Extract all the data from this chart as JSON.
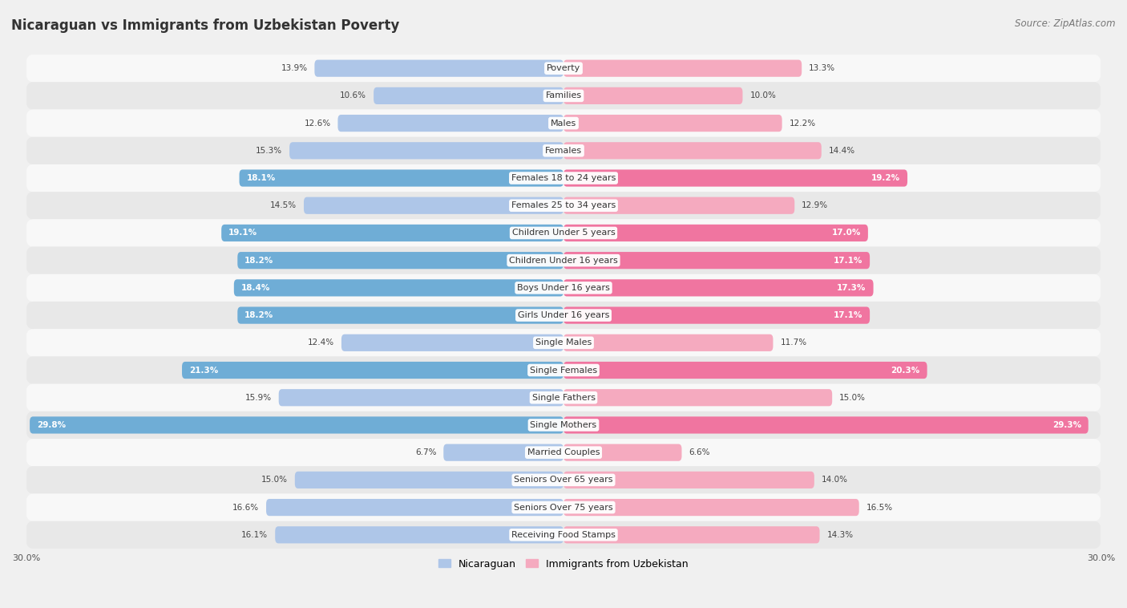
{
  "title": "Nicaraguan vs Immigrants from Uzbekistan Poverty",
  "source": "Source: ZipAtlas.com",
  "categories": [
    "Poverty",
    "Families",
    "Males",
    "Females",
    "Females 18 to 24 years",
    "Females 25 to 34 years",
    "Children Under 5 years",
    "Children Under 16 years",
    "Boys Under 16 years",
    "Girls Under 16 years",
    "Single Males",
    "Single Females",
    "Single Fathers",
    "Single Mothers",
    "Married Couples",
    "Seniors Over 65 years",
    "Seniors Over 75 years",
    "Receiving Food Stamps"
  ],
  "left_values": [
    13.9,
    10.6,
    12.6,
    15.3,
    18.1,
    14.5,
    19.1,
    18.2,
    18.4,
    18.2,
    12.4,
    21.3,
    15.9,
    29.8,
    6.7,
    15.0,
    16.6,
    16.1
  ],
  "right_values": [
    13.3,
    10.0,
    12.2,
    14.4,
    19.2,
    12.9,
    17.0,
    17.1,
    17.3,
    17.1,
    11.7,
    20.3,
    15.0,
    29.3,
    6.6,
    14.0,
    16.5,
    14.3
  ],
  "left_color_normal": "#aec6e8",
  "left_color_highlight": "#6fadd6",
  "right_color_normal": "#f5aabf",
  "right_color_highlight": "#f075a0",
  "highlight_rows": [
    4,
    6,
    7,
    8,
    9,
    11,
    13
  ],
  "x_max": 30.0,
  "bar_height": 0.62,
  "background_color": "#f0f0f0",
  "row_bg_light": "#f8f8f8",
  "row_bg_dark": "#e8e8e8",
  "left_label": "Nicaraguan",
  "right_label": "Immigrants from Uzbekistan",
  "title_fontsize": 12,
  "source_fontsize": 8.5,
  "label_fontsize": 8,
  "value_fontsize": 7.5,
  "axis_label_fontsize": 8
}
